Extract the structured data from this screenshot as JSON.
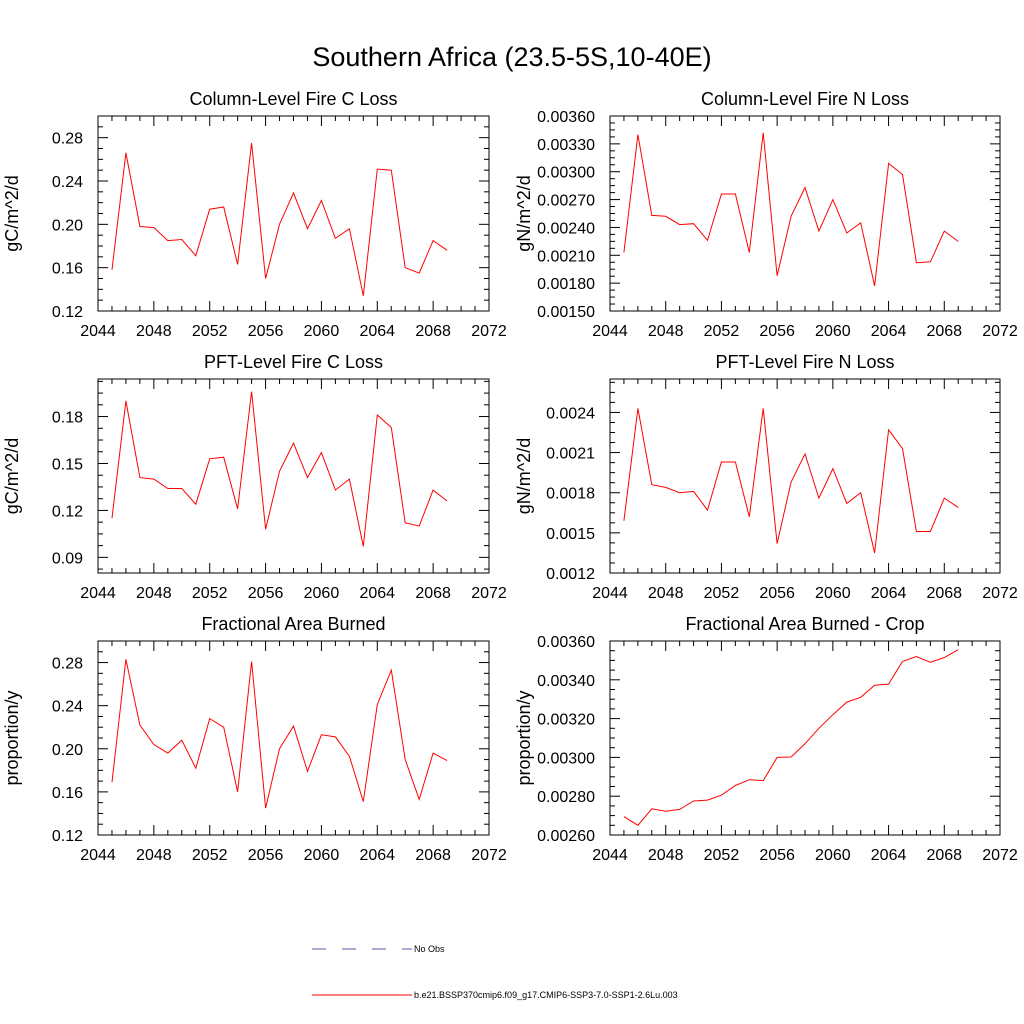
{
  "figure": {
    "title": "Southern Africa (23.5-5S,10-40E)"
  },
  "legend": {
    "obs_label": "No Obs",
    "model_label": "b.e21.BSSP370cmip6.f09_g17.CMIP6-SSP3-7.0-SSP1-2.6Lu.003",
    "obs_color": "#5a5a9c",
    "model_color": "#ff0000"
  },
  "chart_data": [
    {
      "type": "line",
      "title": "Column-Level Fire C Loss",
      "ylabel": "gC/m^2/d",
      "xlim": [
        2044,
        2072
      ],
      "ylim": [
        0.12,
        0.3
      ],
      "xticks": [
        2044,
        2048,
        2052,
        2056,
        2060,
        2064,
        2068,
        2072
      ],
      "xtick_labels": [
        "2044",
        "2048",
        "2052",
        "2056",
        "2060",
        "2064",
        "2068",
        "2072"
      ],
      "yticks": [
        0.12,
        0.16,
        0.2,
        0.24,
        0.28
      ],
      "ytick_labels": [
        "0.12",
        "0.16",
        "0.20",
        "0.24",
        "0.28"
      ],
      "x": [
        2045,
        2046,
        2047,
        2048,
        2049,
        2050,
        2051,
        2052,
        2053,
        2054,
        2055,
        2056,
        2057,
        2058,
        2059,
        2060,
        2061,
        2062,
        2063,
        2064,
        2065,
        2066,
        2067,
        2068,
        2069
      ],
      "series": [
        {
          "values": [
            0.158,
            0.266,
            0.198,
            0.197,
            0.185,
            0.186,
            0.171,
            0.214,
            0.216,
            0.163,
            0.275,
            0.15,
            0.2,
            0.229,
            0.196,
            0.222,
            0.187,
            0.196,
            0.134,
            0.251,
            0.25,
            0.16,
            0.155,
            0.185,
            0.176
          ]
        }
      ]
    },
    {
      "type": "line",
      "title": "Column-Level Fire N Loss",
      "ylabel": "gN/m^2/d",
      "xlim": [
        2044,
        2072
      ],
      "ylim": [
        0.0015,
        0.0036
      ],
      "xticks": [
        2044,
        2048,
        2052,
        2056,
        2060,
        2064,
        2068,
        2072
      ],
      "xtick_labels": [
        "2044",
        "2048",
        "2052",
        "2056",
        "2060",
        "2064",
        "2068",
        "2072"
      ],
      "yticks": [
        0.0015,
        0.0018,
        0.0021,
        0.0024,
        0.0027,
        0.003,
        0.0033,
        0.0036
      ],
      "ytick_labels": [
        "0.00150",
        "0.00180",
        "0.00210",
        "0.00240",
        "0.00270",
        "0.00300",
        "0.00330",
        "0.00360"
      ],
      "x": [
        2045,
        2046,
        2047,
        2048,
        2049,
        2050,
        2051,
        2052,
        2053,
        2054,
        2055,
        2056,
        2057,
        2058,
        2059,
        2060,
        2061,
        2062,
        2063,
        2064,
        2065,
        2066,
        2067,
        2068,
        2069
      ],
      "series": [
        {
          "values": [
            0.00213,
            0.0034,
            0.00253,
            0.00252,
            0.00243,
            0.00244,
            0.00226,
            0.00276,
            0.00276,
            0.00213,
            0.00342,
            0.00188,
            0.00252,
            0.00283,
            0.00236,
            0.0027,
            0.00234,
            0.00245,
            0.00177,
            0.00309,
            0.00297,
            0.00202,
            0.00203,
            0.00236,
            0.00225
          ]
        }
      ]
    },
    {
      "type": "line",
      "title": "PFT-Level Fire C Loss",
      "ylabel": "gC/m^2/d",
      "xlim": [
        2044,
        2072
      ],
      "ylim": [
        0.08,
        0.204
      ],
      "xticks": [
        2044,
        2048,
        2052,
        2056,
        2060,
        2064,
        2068,
        2072
      ],
      "xtick_labels": [
        "2044",
        "2048",
        "2052",
        "2056",
        "2060",
        "2064",
        "2068",
        "2072"
      ],
      "yticks": [
        0.09,
        0.12,
        0.15,
        0.18
      ],
      "ytick_labels": [
        "0.09",
        "0.12",
        "0.15",
        "0.18"
      ],
      "x": [
        2045,
        2046,
        2047,
        2048,
        2049,
        2050,
        2051,
        2052,
        2053,
        2054,
        2055,
        2056,
        2057,
        2058,
        2059,
        2060,
        2061,
        2062,
        2063,
        2064,
        2065,
        2066,
        2067,
        2068,
        2069
      ],
      "series": [
        {
          "values": [
            0.115,
            0.19,
            0.141,
            0.14,
            0.134,
            0.134,
            0.124,
            0.153,
            0.154,
            0.121,
            0.196,
            0.108,
            0.145,
            0.163,
            0.141,
            0.157,
            0.133,
            0.14,
            0.097,
            0.181,
            0.173,
            0.112,
            0.11,
            0.133,
            0.126
          ]
        }
      ]
    },
    {
      "type": "line",
      "title": "PFT-Level Fire N Loss",
      "ylabel": "gN/m^2/d",
      "xlim": [
        2044,
        2072
      ],
      "ylim": [
        0.0012,
        0.00265
      ],
      "xticks": [
        2044,
        2048,
        2052,
        2056,
        2060,
        2064,
        2068,
        2072
      ],
      "xtick_labels": [
        "2044",
        "2048",
        "2052",
        "2056",
        "2060",
        "2064",
        "2068",
        "2072"
      ],
      "yticks": [
        0.0012,
        0.0015,
        0.0018,
        0.0021,
        0.0024
      ],
      "ytick_labels": [
        "0.0012",
        "0.0015",
        "0.0018",
        "0.0021",
        "0.0024"
      ],
      "x": [
        2045,
        2046,
        2047,
        2048,
        2049,
        2050,
        2051,
        2052,
        2053,
        2054,
        2055,
        2056,
        2057,
        2058,
        2059,
        2060,
        2061,
        2062,
        2063,
        2064,
        2065,
        2066,
        2067,
        2068,
        2069
      ],
      "series": [
        {
          "values": [
            0.00159,
            0.00243,
            0.00186,
            0.00184,
            0.0018,
            0.00181,
            0.00167,
            0.00203,
            0.00203,
            0.00162,
            0.00243,
            0.00142,
            0.00188,
            0.00209,
            0.00176,
            0.00198,
            0.00172,
            0.0018,
            0.00135,
            0.00227,
            0.00213,
            0.00151,
            0.00151,
            0.00176,
            0.00169
          ]
        }
      ]
    },
    {
      "type": "line",
      "title": "Fractional Area Burned",
      "ylabel": "proportion/y",
      "xlim": [
        2044,
        2072
      ],
      "ylim": [
        0.12,
        0.3
      ],
      "xticks": [
        2044,
        2048,
        2052,
        2056,
        2060,
        2064,
        2068,
        2072
      ],
      "xtick_labels": [
        "2044",
        "2048",
        "2052",
        "2056",
        "2060",
        "2064",
        "2068",
        "2072"
      ],
      "yticks": [
        0.12,
        0.16,
        0.2,
        0.24,
        0.28
      ],
      "ytick_labels": [
        "0.12",
        "0.16",
        "0.20",
        "0.24",
        "0.28"
      ],
      "x": [
        2045,
        2046,
        2047,
        2048,
        2049,
        2050,
        2051,
        2052,
        2053,
        2054,
        2055,
        2056,
        2057,
        2058,
        2059,
        2060,
        2061,
        2062,
        2063,
        2064,
        2065,
        2066,
        2067,
        2068,
        2069
      ],
      "series": [
        {
          "values": [
            0.169,
            0.283,
            0.222,
            0.204,
            0.196,
            0.208,
            0.182,
            0.228,
            0.22,
            0.16,
            0.281,
            0.145,
            0.2,
            0.221,
            0.179,
            0.213,
            0.211,
            0.193,
            0.151,
            0.241,
            0.273,
            0.19,
            0.153,
            0.196,
            0.189
          ]
        }
      ]
    },
    {
      "type": "line",
      "title": "Fractional Area Burned - Crop",
      "ylabel": "proportion/y",
      "xlim": [
        2044,
        2072
      ],
      "ylim": [
        0.0026,
        0.0036
      ],
      "xticks": [
        2044,
        2048,
        2052,
        2056,
        2060,
        2064,
        2068,
        2072
      ],
      "xtick_labels": [
        "2044",
        "2048",
        "2052",
        "2056",
        "2060",
        "2064",
        "2068",
        "2072"
      ],
      "yticks": [
        0.0026,
        0.0028,
        0.003,
        0.0032,
        0.0034,
        0.0036
      ],
      "ytick_labels": [
        "0.00260",
        "0.00280",
        "0.00300",
        "0.00320",
        "0.00340",
        "0.00360"
      ],
      "x": [
        2045,
        2046,
        2047,
        2048,
        2049,
        2050,
        2051,
        2052,
        2053,
        2054,
        2055,
        2056,
        2057,
        2058,
        2059,
        2060,
        2061,
        2062,
        2063,
        2064,
        2065,
        2066,
        2067,
        2068,
        2069
      ],
      "series": [
        {
          "values": [
            0.002695,
            0.00265,
            0.002735,
            0.002722,
            0.002732,
            0.002775,
            0.00278,
            0.002805,
            0.002855,
            0.002885,
            0.00288,
            0.003,
            0.003002,
            0.00307,
            0.00315,
            0.00322,
            0.003285,
            0.00331,
            0.003372,
            0.003378,
            0.003495,
            0.00352,
            0.00349,
            0.003515,
            0.003555
          ]
        }
      ]
    }
  ]
}
